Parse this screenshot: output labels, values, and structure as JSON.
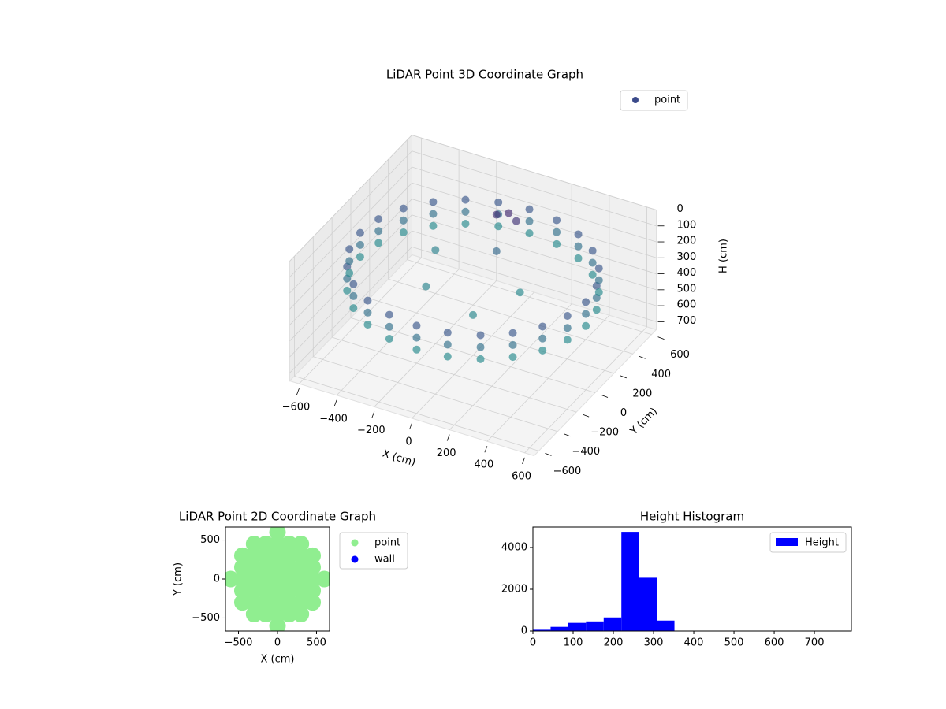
{
  "chart_data": [
    {
      "type": "scatter3d",
      "title": "LiDAR Point 3D Coordinate Graph",
      "xlabel": "X (cm)",
      "ylabel": "Y (cm)",
      "zlabel": "H (cm)",
      "xlim": [
        -650,
        650
      ],
      "ylim": [
        -650,
        650
      ],
      "zlim": [
        0,
        750
      ],
      "zinverted": true,
      "xticks": [
        {
          "value": -600,
          "label": "−600"
        },
        {
          "value": -400,
          "label": "−400"
        },
        {
          "value": -200,
          "label": "−200"
        },
        0,
        200,
        400,
        600
      ],
      "yticks": [
        {
          "value": -600,
          "label": "−600"
        },
        {
          "value": -400,
          "label": "−400"
        },
        {
          "value": -200,
          "label": "−200"
        },
        0,
        200,
        400,
        600
      ],
      "zticks": [
        0,
        100,
        200,
        300,
        400,
        500,
        600,
        700
      ],
      "grid": true,
      "legend": "upper right",
      "colormap": [
        "#440154",
        "#3b528b",
        "#21918c",
        "#5ec962",
        "#fde725"
      ],
      "series": [
        {
          "name": "point",
          "color": "#3b4a8a",
          "x": [
            600,
            580,
            520,
            424,
            300,
            155,
            0,
            -155,
            -300,
            -424,
            -520,
            -580,
            -600,
            -580,
            -520,
            -424,
            -300,
            -155,
            0,
            155,
            300,
            424,
            520,
            580,
            600,
            580,
            520,
            424,
            300,
            155,
            0,
            -155,
            -300,
            -424,
            -520,
            -580,
            -600,
            -580,
            -520,
            -424,
            -300,
            -155,
            0,
            155,
            300,
            424,
            520,
            580,
            600,
            580,
            520,
            424,
            300,
            155,
            0,
            -155,
            -300,
            -424,
            -520,
            -580,
            -600,
            -580,
            -520,
            -424,
            -300,
            -155,
            0,
            155,
            300,
            424,
            520,
            580,
            -200,
            100,
            200,
            -300,
            0,
            -50,
            0,
            50
          ],
          "y": [
            0,
            155,
            300,
            424,
            520,
            580,
            600,
            580,
            520,
            424,
            300,
            155,
            0,
            -155,
            -300,
            -424,
            -520,
            -580,
            -600,
            -580,
            -520,
            -424,
            -300,
            -155,
            0,
            155,
            300,
            424,
            520,
            580,
            600,
            580,
            520,
            424,
            300,
            155,
            0,
            -155,
            -300,
            -424,
            -520,
            -580,
            -600,
            -580,
            -520,
            -424,
            -300,
            -155,
            0,
            155,
            300,
            424,
            520,
            580,
            600,
            580,
            520,
            424,
            300,
            155,
            0,
            -155,
            -300,
            -424,
            -520,
            -580,
            -600,
            -580,
            -520,
            -424,
            -300,
            -155,
            -100,
            -200,
            100,
            200,
            250,
            350,
            380,
            360
          ],
          "z": [
            200,
            200,
            200,
            200,
            200,
            200,
            200,
            200,
            200,
            200,
            200,
            200,
            200,
            200,
            200,
            200,
            200,
            200,
            200,
            200,
            200,
            200,
            200,
            200,
            275,
            275,
            275,
            275,
            275,
            275,
            275,
            275,
            275,
            275,
            275,
            275,
            275,
            275,
            275,
            275,
            275,
            275,
            275,
            275,
            275,
            275,
            275,
            275,
            350,
            350,
            350,
            350,
            350,
            350,
            350,
            350,
            350,
            350,
            350,
            350,
            350,
            350,
            350,
            350,
            350,
            350,
            350,
            350,
            350,
            350,
            350,
            350,
            330,
            340,
            345,
            320,
            250,
            100,
            90,
            110
          ]
        }
      ]
    },
    {
      "type": "scatter",
      "title": "LiDAR Point 2D Coordinate Graph",
      "xlabel": "X (cm)",
      "ylabel": "Y (cm)",
      "xlim": [
        -667,
        667
      ],
      "ylim": [
        -667,
        667
      ],
      "xticks": [
        {
          "value": -500,
          "label": "−500"
        },
        0,
        500
      ],
      "yticks": [
        {
          "value": -500,
          "label": "−500"
        },
        0,
        500
      ],
      "legend": "outside right",
      "series": [
        {
          "name": "point",
          "color": "#90ee90",
          "x": [
            -600,
            -450,
            -450,
            -450,
            -450,
            -450,
            -300,
            -300,
            -300,
            -300,
            -300,
            -300,
            -300,
            -150,
            -150,
            -150,
            -150,
            -150,
            -150,
            -150,
            0,
            0,
            0,
            0,
            0,
            0,
            0,
            0,
            0,
            150,
            150,
            150,
            150,
            150,
            150,
            150,
            300,
            300,
            300,
            300,
            300,
            300,
            300,
            450,
            450,
            450,
            450,
            450,
            600
          ],
          "y": [
            0,
            -300,
            -150,
            0,
            150,
            300,
            -450,
            -300,
            -150,
            0,
            150,
            300,
            450,
            -450,
            -300,
            -150,
            0,
            150,
            300,
            450,
            -600,
            -450,
            -300,
            -150,
            0,
            150,
            300,
            450,
            600,
            -450,
            -300,
            -150,
            0,
            150,
            300,
            450,
            -450,
            -300,
            -150,
            0,
            150,
            300,
            450,
            -300,
            -150,
            0,
            150,
            300,
            0
          ]
        },
        {
          "name": "wall",
          "color": "#0000ff",
          "x": [],
          "y": []
        }
      ]
    },
    {
      "type": "histogram",
      "title": "Height Histogram",
      "bins": [
        0,
        44,
        88,
        132,
        176,
        220,
        264,
        308,
        352,
        396,
        440,
        484,
        528,
        572,
        616,
        660,
        704,
        748,
        792
      ],
      "xlim": [
        0,
        792
      ],
      "ylim": [
        0,
        4980
      ],
      "xticks": [
        0,
        100,
        200,
        300,
        400,
        500,
        600,
        700
      ],
      "yticks": [
        0,
        2000,
        4000
      ],
      "legend": "upper right",
      "series": [
        {
          "name": "Height",
          "color": "#0000ff",
          "values": [
            60,
            200,
            390,
            460,
            650,
            4750,
            2550,
            500,
            0,
            0,
            0,
            0,
            0,
            0,
            0,
            0,
            0,
            0
          ]
        }
      ]
    }
  ]
}
